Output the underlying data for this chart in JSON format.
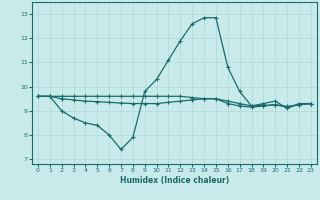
{
  "xlabel": "Humidex (Indice chaleur)",
  "bg_color": "#c8eaea",
  "grid_color": "#b0d8d8",
  "line_color": "#1a6b6b",
  "xlim": [
    -0.5,
    23.5
  ],
  "ylim": [
    6.8,
    13.5
  ],
  "yticks": [
    7,
    8,
    9,
    10,
    11,
    12,
    13
  ],
  "xticks": [
    0,
    1,
    2,
    3,
    4,
    5,
    6,
    7,
    8,
    9,
    10,
    11,
    12,
    13,
    14,
    15,
    16,
    17,
    18,
    19,
    20,
    21,
    22,
    23
  ],
  "series1": {
    "x": [
      0,
      1,
      2,
      3,
      4,
      5,
      6,
      7,
      8,
      9,
      10,
      11,
      12,
      13,
      14,
      15,
      16,
      17,
      18,
      19,
      20,
      21,
      22,
      23
    ],
    "y": [
      9.6,
      9.6,
      9.0,
      8.7,
      8.5,
      8.4,
      8.0,
      7.4,
      7.9,
      9.8,
      10.3,
      11.1,
      11.9,
      12.6,
      12.85,
      12.85,
      10.8,
      9.8,
      9.2,
      9.3,
      9.4,
      9.1,
      9.3,
      9.3
    ]
  },
  "series2": {
    "x": [
      0,
      1,
      2,
      3,
      4,
      5,
      6,
      7,
      8,
      9,
      10,
      11,
      12,
      13,
      14,
      15,
      16,
      17,
      18,
      19,
      20,
      21,
      22,
      23
    ],
    "y": [
      9.6,
      9.6,
      9.6,
      9.6,
      9.6,
      9.6,
      9.6,
      9.6,
      9.6,
      9.6,
      9.6,
      9.6,
      9.6,
      9.55,
      9.5,
      9.5,
      9.3,
      9.2,
      9.15,
      9.2,
      9.25,
      9.15,
      9.25,
      9.3
    ]
  },
  "series3": {
    "x": [
      0,
      1,
      2,
      3,
      4,
      5,
      6,
      7,
      8,
      9,
      10,
      11,
      12,
      13,
      14,
      15,
      16,
      17,
      18,
      19,
      20,
      21,
      22,
      23
    ],
    "y": [
      9.6,
      9.6,
      9.5,
      9.45,
      9.4,
      9.38,
      9.35,
      9.32,
      9.3,
      9.3,
      9.3,
      9.35,
      9.4,
      9.45,
      9.5,
      9.5,
      9.4,
      9.3,
      9.2,
      9.22,
      9.25,
      9.18,
      9.25,
      9.3
    ]
  }
}
